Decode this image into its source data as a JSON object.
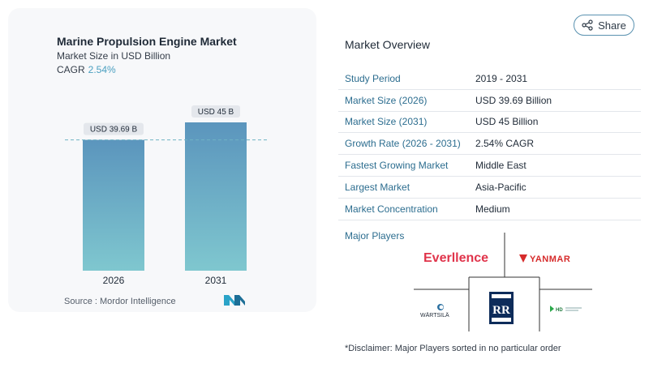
{
  "chart": {
    "title": "Marine Propulsion Engine Market",
    "subtitle": "Market Size in USD Billion",
    "cagr_label": "CAGR",
    "cagr_value": "2.54%",
    "source": "Source :  Mordor Intelligence",
    "colors": {
      "bar_top": "#5b95bd",
      "bar_bottom": "#7fc7cf",
      "dash": "#6fb4c4",
      "label_bg": "#e4e7ec"
    }
  },
  "chart_data": {
    "type": "bar",
    "categories": [
      "2026",
      "2031"
    ],
    "values": [
      39.69,
      45
    ],
    "data_labels": [
      "USD 39.69 B",
      "USD 45 B"
    ],
    "ylim": [
      0,
      45
    ],
    "xlabel": "",
    "ylabel": "",
    "reference_line": 39.69
  },
  "share": {
    "label": "Share",
    "icon": "share-icon"
  },
  "overview": {
    "title": "Market Overview",
    "rows": [
      {
        "key": "Study Period",
        "value": "2019 - 2031"
      },
      {
        "key": "Market Size (2026)",
        "value": "USD 39.69 Billion"
      },
      {
        "key": "Market Size (2031)",
        "value": "USD 45 Billion"
      },
      {
        "key": "Growth Rate (2026 - 2031)",
        "value": "2.54% CAGR"
      },
      {
        "key": "Fastest Growing Market",
        "value": "Middle East"
      },
      {
        "key": "Largest Market",
        "value": "Asia-Pacific"
      },
      {
        "key": "Market Concentration",
        "value": "Medium"
      }
    ]
  },
  "players": {
    "title": "Major Players",
    "logos": [
      "Everllence",
      "YANMAR",
      "WÄRTSILÄ",
      "Rolls-Royce",
      "HD Hyundai"
    ]
  },
  "disclaimer": "*Disclaimer: Major Players sorted in no particular order"
}
